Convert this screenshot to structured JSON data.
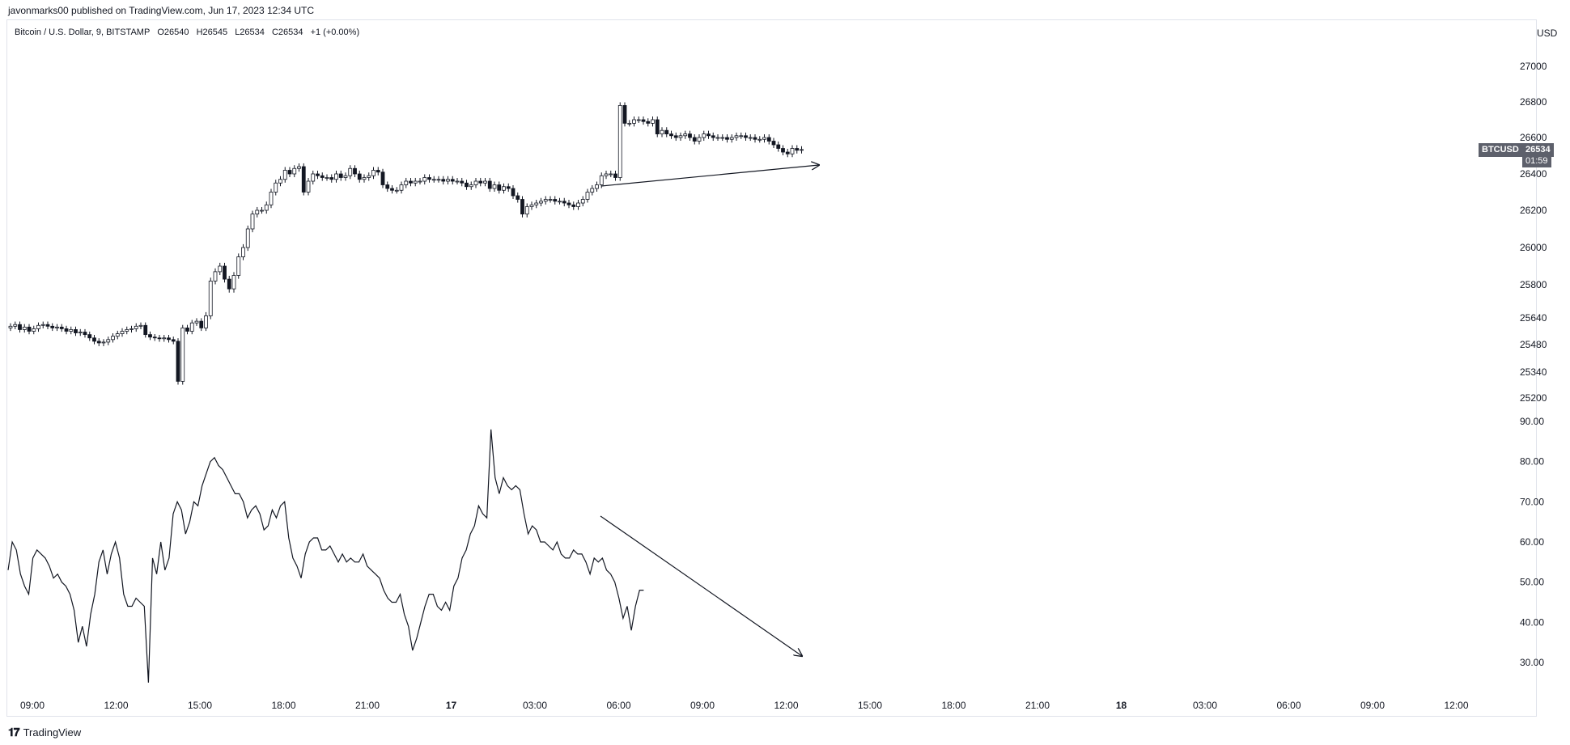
{
  "published": "javonmarks00 published on TradingView.com, Jun 17, 2023 12:34 UTC",
  "symbol": {
    "name": "Bitcoin / U.S. Dollar, 9, BITSTAMP",
    "open": "O26540",
    "high": "H26545",
    "low": "L26534",
    "close": "C26534",
    "change": "+1 (+0.00%)"
  },
  "currency": "USD",
  "price_tag": {
    "ticker": "BTCUSD",
    "price": "26534",
    "countdown": "01:59"
  },
  "brand": {
    "name": "TradingView",
    "logo": "tradingview-logo-icon"
  },
  "colors": {
    "line": "#131722",
    "up_fill": "#ffffff",
    "down_fill": "#131722",
    "tag_bg": "#5d606b"
  },
  "chart_data": [
    {
      "type": "candlestick",
      "title": "",
      "interval_minutes": 9,
      "y_ticks": [
        "27000",
        "26800",
        "26600",
        "26400",
        "26200",
        "26000",
        "25800",
        "25640",
        "25480",
        "25340",
        "25200"
      ],
      "ylim": [
        25200,
        27000
      ],
      "x_ticks": [
        "09:00",
        "12:00",
        "15:00",
        "18:00",
        "21:00",
        "17",
        "03:00",
        "06:00",
        "09:00",
        "12:00",
        "15:00",
        "18:00",
        "21:00",
        "18",
        "03:00",
        "06:00",
        "09:00",
        "12:00"
      ],
      "close_approx": [
        25590,
        25600,
        25570,
        25585,
        25560,
        25575,
        25595,
        25600,
        25590,
        25580,
        25585,
        25575,
        25560,
        25570,
        25550,
        25555,
        25540,
        25520,
        25500,
        25490,
        25495,
        25510,
        25530,
        25545,
        25560,
        25570,
        25575,
        25590,
        25595,
        25540,
        25525,
        25520,
        25515,
        25520,
        25510,
        25500,
        25290,
        25580,
        25560,
        25610,
        25620,
        25580,
        25650,
        25820,
        25870,
        25900,
        25830,
        25780,
        25850,
        25950,
        26000,
        26100,
        26180,
        26200,
        26200,
        26230,
        26300,
        26350,
        26370,
        26420,
        26400,
        26430,
        26440,
        26300,
        26360,
        26400,
        26390,
        26380,
        26380,
        26370,
        26400,
        26380,
        26390,
        26430,
        26400,
        26370,
        26380,
        26390,
        26420,
        26410,
        26340,
        26320,
        26310,
        26310,
        26340,
        26360,
        26350,
        26360,
        26360,
        26380,
        26370,
        26370,
        26370,
        26360,
        26370,
        26360,
        26360,
        26350,
        26330,
        26340,
        26360,
        26350,
        26360,
        26320,
        26340,
        26310,
        26330,
        26320,
        26280,
        26260,
        26180,
        26220,
        26230,
        26240,
        26250,
        26260,
        26260,
        26250,
        26250,
        26240,
        26230,
        26220,
        26240,
        26260,
        26300,
        26320,
        26340,
        26390,
        26400,
        26400,
        26380,
        26780,
        26680,
        26680,
        26700,
        26700,
        26690,
        26680,
        26700,
        26620,
        26640,
        26620,
        26610,
        26600,
        26610,
        26620,
        26600,
        26580,
        26600,
        26620,
        26610,
        26600,
        26600,
        26600,
        26590,
        26600,
        26610,
        26610,
        26600,
        26600,
        26590,
        26590,
        26600,
        26580,
        26560,
        26540,
        26520,
        26510,
        26540,
        26530,
        26534
      ]
    },
    {
      "type": "line",
      "title": "",
      "y_ticks": [
        "90.00",
        "80.00",
        "70.00",
        "60.00",
        "50.00",
        "40.00",
        "30.00"
      ],
      "ylim": [
        25,
        90
      ],
      "values": [
        53,
        60,
        58,
        52,
        49,
        47,
        56,
        58,
        57,
        56,
        54,
        51,
        52,
        50,
        49,
        47,
        43,
        35,
        39,
        34,
        42,
        47,
        55,
        58,
        52,
        57,
        60,
        56,
        47,
        44,
        44,
        46,
        45,
        44,
        25,
        56,
        52,
        60,
        53,
        56,
        67,
        70,
        68,
        62,
        65,
        70,
        69,
        74,
        77,
        80,
        81,
        79,
        78,
        76,
        74,
        72,
        72,
        70,
        66,
        68,
        69,
        67,
        63,
        64,
        68,
        66,
        69,
        70,
        61,
        56,
        54,
        51,
        57,
        60,
        61,
        61,
        58,
        58,
        59,
        57,
        55,
        57,
        55,
        56,
        55,
        55,
        57,
        54,
        53,
        52,
        51,
        48,
        46,
        45,
        45,
        47,
        42,
        39,
        33,
        36,
        40,
        44,
        47,
        47,
        44,
        43,
        45,
        43,
        49,
        51,
        56,
        58,
        62,
        64,
        69,
        67,
        66,
        88,
        76,
        72,
        76,
        74,
        73,
        74,
        73,
        67,
        62,
        64,
        63,
        60,
        60,
        59,
        58,
        60,
        57,
        56,
        56,
        58,
        57,
        57,
        55,
        52,
        56,
        55,
        56,
        53,
        52,
        50,
        46,
        41,
        44,
        38,
        44,
        48,
        48
      ]
    }
  ]
}
